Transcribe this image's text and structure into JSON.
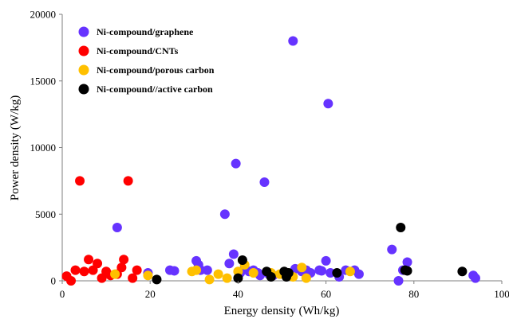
{
  "chart_data": {
    "type": "scatter",
    "title": "",
    "xlabel": "Energy density (Wh/kg)",
    "ylabel": "Power density (W/kg)",
    "xlim": [
      0,
      100
    ],
    "ylim": [
      0,
      20000
    ],
    "x_ticks": [
      0,
      20,
      40,
      60,
      80,
      100
    ],
    "y_ticks": [
      0,
      5000,
      10000,
      15000,
      20000
    ],
    "grid": false,
    "legend_position": "top-left",
    "series": [
      {
        "name": "Ni-compound/graphene",
        "color": "#6633ff",
        "points": [
          [
            12.5,
            4000
          ],
          [
            19.5,
            600
          ],
          [
            24.5,
            800
          ],
          [
            25.5,
            750
          ],
          [
            30.5,
            1500
          ],
          [
            31,
            1200
          ],
          [
            31.5,
            800
          ],
          [
            33,
            800
          ],
          [
            37,
            5000
          ],
          [
            38,
            1300
          ],
          [
            39,
            2000
          ],
          [
            39.5,
            8800
          ],
          [
            40.5,
            600
          ],
          [
            41.5,
            1000
          ],
          [
            42.5,
            700
          ],
          [
            43.5,
            800
          ],
          [
            44.5,
            600
          ],
          [
            45,
            400
          ],
          [
            46,
            7400
          ],
          [
            47,
            500
          ],
          [
            48,
            400
          ],
          [
            51,
            600
          ],
          [
            52.5,
            18000
          ],
          [
            53,
            900
          ],
          [
            54.5,
            700
          ],
          [
            55.5,
            800
          ],
          [
            56.5,
            600
          ],
          [
            58.5,
            800
          ],
          [
            59,
            750
          ],
          [
            60,
            1500
          ],
          [
            60.5,
            13300
          ],
          [
            61,
            600
          ],
          [
            63,
            300
          ],
          [
            64.5,
            800
          ],
          [
            66.5,
            800
          ],
          [
            67.5,
            500
          ],
          [
            75,
            2350
          ],
          [
            76.5,
            0
          ],
          [
            77.5,
            800
          ],
          [
            78.5,
            1400
          ],
          [
            93.5,
            400
          ],
          [
            94,
            200
          ]
        ]
      },
      {
        "name": "Ni-compound/CNTs",
        "color": "#ff0000",
        "points": [
          [
            1,
            350
          ],
          [
            2,
            0
          ],
          [
            3,
            800
          ],
          [
            4,
            7500
          ],
          [
            5,
            700
          ],
          [
            6,
            1600
          ],
          [
            7,
            800
          ],
          [
            8,
            1300
          ],
          [
            9,
            200
          ],
          [
            10,
            700
          ],
          [
            11,
            400
          ],
          [
            12.5,
            500
          ],
          [
            13.5,
            1000
          ],
          [
            14,
            1600
          ],
          [
            15,
            7500
          ],
          [
            16,
            200
          ],
          [
            17,
            800
          ]
        ]
      },
      {
        "name": "Ni-compound/porous carbon",
        "color": "#ffc000",
        "points": [
          [
            12,
            500
          ],
          [
            19.5,
            400
          ],
          [
            29.5,
            700
          ],
          [
            30.5,
            800
          ],
          [
            33.5,
            100
          ],
          [
            35.5,
            500
          ],
          [
            37.5,
            200
          ],
          [
            40,
            700
          ],
          [
            41.5,
            1200
          ],
          [
            43.5,
            600
          ],
          [
            47.5,
            600
          ],
          [
            49.5,
            500
          ],
          [
            51.5,
            400
          ],
          [
            52.5,
            300
          ],
          [
            54.5,
            1000
          ],
          [
            55.5,
            200
          ],
          [
            65.5,
            700
          ]
        ]
      },
      {
        "name": "Ni-compound//active carbon",
        "color": "#000000",
        "points": [
          [
            21.5,
            100
          ],
          [
            40,
            200
          ],
          [
            41,
            1550
          ],
          [
            46.5,
            700
          ],
          [
            47.5,
            300
          ],
          [
            50.5,
            700
          ],
          [
            51,
            300
          ],
          [
            51.5,
            600
          ],
          [
            62.5,
            600
          ],
          [
            77,
            4000
          ],
          [
            78,
            800
          ],
          [
            78.5,
            750
          ],
          [
            91,
            700
          ]
        ]
      }
    ]
  }
}
